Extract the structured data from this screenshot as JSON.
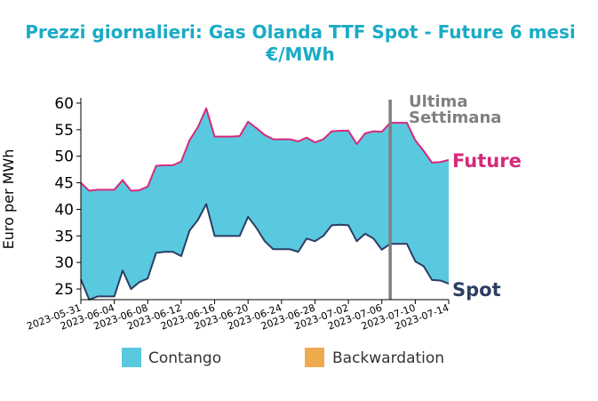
{
  "chart_data": {
    "type": "area",
    "title_line1": "Prezzi giornalieri: Gas Olanda TTF Spot - Future 6 mesi",
    "title_line2": "€/MWh",
    "ylabel": "Euro per MWh",
    "ylim": [
      23,
      61
    ],
    "yticks": [
      25,
      30,
      35,
      40,
      45,
      50,
      55,
      60
    ],
    "xlim": [
      "2023-05-31",
      "2023-07-14"
    ],
    "xticks": [
      "2023-05-31",
      "2023-06-04",
      "2023-06-08",
      "2023-06-12",
      "2023-06-16",
      "2023-06-20",
      "2023-06-24",
      "2023-06-28",
      "2023-07-02",
      "2023-07-06",
      "2023-07-10",
      "2023-07-14"
    ],
    "colors": {
      "future": "#d62a7b",
      "spot": "#2b3e63",
      "contango": "#59c9df",
      "backwardation": "#eeab4e",
      "annotation": "#808080"
    },
    "series": [
      {
        "name": "Future",
        "points": [
          [
            "2023-05-31",
            45.0
          ],
          [
            "2023-06-01",
            43.5
          ],
          [
            "2023-06-02",
            43.7
          ],
          [
            "2023-06-03",
            43.7
          ],
          [
            "2023-06-04",
            43.7
          ],
          [
            "2023-06-05",
            45.5
          ],
          [
            "2023-06-06",
            43.5
          ],
          [
            "2023-06-07",
            43.6
          ],
          [
            "2023-06-08",
            44.3
          ],
          [
            "2023-06-09",
            48.2
          ],
          [
            "2023-06-10",
            48.3
          ],
          [
            "2023-06-11",
            48.3
          ],
          [
            "2023-06-12",
            49.0
          ],
          [
            "2023-06-13",
            53.0
          ],
          [
            "2023-06-14",
            55.5
          ],
          [
            "2023-06-15",
            59.0
          ],
          [
            "2023-06-16",
            53.7
          ],
          [
            "2023-06-17",
            53.7
          ],
          [
            "2023-06-18",
            53.7
          ],
          [
            "2023-06-19",
            53.8
          ],
          [
            "2023-06-20",
            56.5
          ],
          [
            "2023-06-21",
            55.3
          ],
          [
            "2023-06-22",
            54.0
          ],
          [
            "2023-06-23",
            53.2
          ],
          [
            "2023-06-24",
            53.2
          ],
          [
            "2023-06-25",
            53.2
          ],
          [
            "2023-06-26",
            52.8
          ],
          [
            "2023-06-27",
            53.5
          ],
          [
            "2023-06-28",
            52.6
          ],
          [
            "2023-06-29",
            53.2
          ],
          [
            "2023-06-30",
            54.7
          ],
          [
            "2023-07-01",
            54.8
          ],
          [
            "2023-07-02",
            54.8
          ],
          [
            "2023-07-03",
            52.3
          ],
          [
            "2023-07-04",
            54.3
          ],
          [
            "2023-07-05",
            54.7
          ],
          [
            "2023-07-06",
            54.6
          ],
          [
            "2023-07-07",
            56.3
          ],
          [
            "2023-07-08",
            56.3
          ],
          [
            "2023-07-09",
            56.3
          ],
          [
            "2023-07-10",
            53.0
          ],
          [
            "2023-07-11",
            51.0
          ],
          [
            "2023-07-12",
            48.8
          ],
          [
            "2023-07-13",
            48.9
          ],
          [
            "2023-07-14",
            49.3
          ]
        ]
      },
      {
        "name": "Spot",
        "points": [
          [
            "2023-05-31",
            26.8
          ],
          [
            "2023-06-01",
            23.0
          ],
          [
            "2023-06-02",
            23.6
          ],
          [
            "2023-06-03",
            23.6
          ],
          [
            "2023-06-04",
            23.6
          ],
          [
            "2023-06-05",
            28.5
          ],
          [
            "2023-06-06",
            25.0
          ],
          [
            "2023-06-07",
            26.3
          ],
          [
            "2023-06-08",
            27.0
          ],
          [
            "2023-06-09",
            31.8
          ],
          [
            "2023-06-10",
            32.0
          ],
          [
            "2023-06-11",
            32.0
          ],
          [
            "2023-06-12",
            31.2
          ],
          [
            "2023-06-13",
            36.0
          ],
          [
            "2023-06-14",
            38.0
          ],
          [
            "2023-06-15",
            41.0
          ],
          [
            "2023-06-16",
            35.0
          ],
          [
            "2023-06-17",
            35.0
          ],
          [
            "2023-06-18",
            35.0
          ],
          [
            "2023-06-19",
            35.0
          ],
          [
            "2023-06-20",
            38.6
          ],
          [
            "2023-06-21",
            36.5
          ],
          [
            "2023-06-22",
            34.0
          ],
          [
            "2023-06-23",
            32.5
          ],
          [
            "2023-06-24",
            32.5
          ],
          [
            "2023-06-25",
            32.5
          ],
          [
            "2023-06-26",
            32.0
          ],
          [
            "2023-06-27",
            34.5
          ],
          [
            "2023-06-28",
            34.0
          ],
          [
            "2023-06-29",
            35.0
          ],
          [
            "2023-06-30",
            37.0
          ],
          [
            "2023-07-01",
            37.1
          ],
          [
            "2023-07-02",
            37.0
          ],
          [
            "2023-07-03",
            34.0
          ],
          [
            "2023-07-04",
            35.4
          ],
          [
            "2023-07-05",
            34.5
          ],
          [
            "2023-07-06",
            32.4
          ],
          [
            "2023-07-07",
            33.5
          ],
          [
            "2023-07-08",
            33.5
          ],
          [
            "2023-07-09",
            33.5
          ],
          [
            "2023-07-10",
            30.2
          ],
          [
            "2023-07-11",
            29.3
          ],
          [
            "2023-07-12",
            26.7
          ],
          [
            "2023-07-13",
            26.6
          ],
          [
            "2023-07-14",
            26.0
          ]
        ]
      }
    ],
    "end_labels": {
      "future": "Future",
      "spot": "Spot"
    },
    "vline": {
      "date": "2023-07-07",
      "label_line1": "Ultima",
      "label_line2": "Settimana"
    },
    "legend": {
      "position": "bottom",
      "entries": [
        {
          "label": "Contango",
          "color": "#59c9df"
        },
        {
          "label": "Backwardation",
          "color": "#eeab4e"
        }
      ]
    },
    "grid": false
  }
}
